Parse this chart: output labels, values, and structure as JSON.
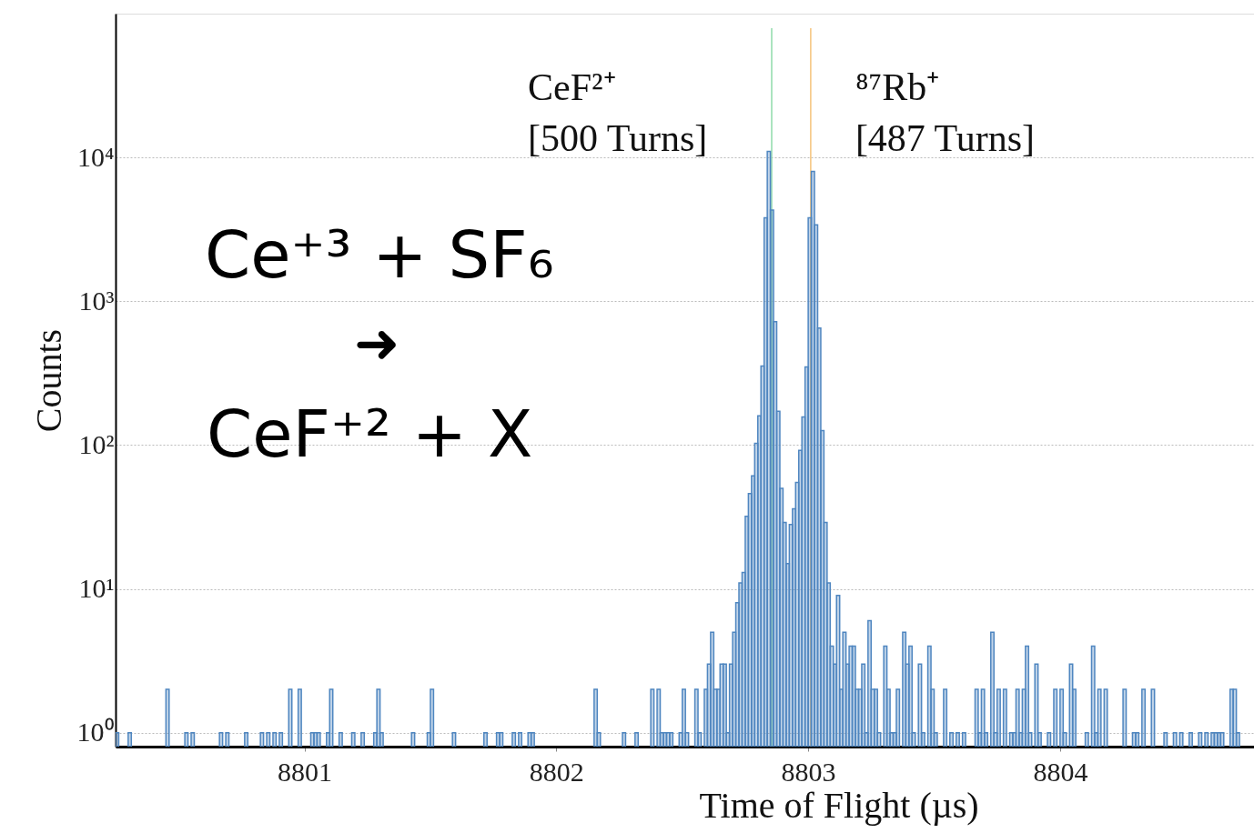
{
  "chart_data": {
    "type": "histogram",
    "xlabel": "Time of Flight (µs)",
    "ylabel": "Counts",
    "log": "y",
    "grid": "y",
    "xlim": [
      8800.25,
      8804.77
    ],
    "xticks": [
      8801,
      8802,
      8803,
      8804
    ],
    "ylim": [
      0.8,
      100000
    ],
    "yticks": [
      {
        "value": 1,
        "label": "10⁰"
      },
      {
        "value": 10,
        "label": "10¹"
      },
      {
        "value": 100,
        "label": "10²"
      },
      {
        "value": 1000,
        "label": "10³"
      },
      {
        "value": 10000,
        "label": "10⁴"
      }
    ],
    "color": "#4f86c0",
    "bins": [
      8800.25,
      8800.2625,
      8800.3,
      8800.3125,
      8800.45,
      8800.4625,
      8800.525,
      8800.5375,
      8800.55,
      8800.5625,
      8800.6625,
      8800.675,
      8800.6875,
      8800.7,
      8800.7625,
      8800.775,
      8800.825,
      8800.8375,
      8800.85,
      8800.8625,
      8800.875,
      8800.8875,
      8800.9,
      8800.9125,
      8800.9375,
      8800.95,
      8800.975,
      8800.9875,
      8801.025,
      8801.0375,
      8801.05,
      8801.0625,
      8801.0875,
      8801.1,
      8801.1125,
      8801.1375,
      8801.15,
      8801.1875,
      8801.2,
      8801.225,
      8801.2375,
      8801.275,
      8801.2875,
      8801.3,
      8801.3125,
      8801.425,
      8801.4375,
      8801.4875,
      8801.5,
      8801.5125,
      8801.5875,
      8801.6,
      8801.7125,
      8801.725,
      8801.7625,
      8801.775,
      8801.7875,
      8801.825,
      8801.8375,
      8801.85,
      8801.8625,
      8801.8875,
      8801.9,
      8801.9125,
      8802.15,
      8802.1625,
      8802.175,
      8802.2625,
      8802.275,
      8802.3125,
      8802.325,
      8802.375,
      8802.3875,
      8802.4,
      8802.4125,
      8802.425,
      8802.4375,
      8802.45,
      8802.4625,
      8802.4875,
      8802.5,
      8802.5125,
      8802.525,
      8802.55,
      8802.5625,
      8802.575,
      8802.5875,
      8802.6,
      8802.6125,
      8802.625,
      8802.6375,
      8802.65,
      8802.6625,
      8802.675,
      8802.6875,
      8802.7,
      8802.7125,
      8802.725,
      8802.7375,
      8802.75,
      8802.7625,
      8802.775,
      8802.7875,
      8802.8,
      8802.8125,
      8802.825,
      8802.8375,
      8802.85,
      8802.8625,
      8802.875,
      8802.8875,
      8802.9,
      8802.9125,
      8802.925,
      8802.9375,
      8802.95,
      8802.9625,
      8802.975,
      8802.9875,
      8803.0,
      8803.0125,
      8803.025,
      8803.0375,
      8803.05,
      8803.0625,
      8803.075,
      8803.0875,
      8803.1,
      8803.1125,
      8803.125,
      8803.1375,
      8803.15,
      8803.1625,
      8803.175,
      8803.1875,
      8803.2,
      8803.2125,
      8803.225,
      8803.2375,
      8803.25,
      8803.2625,
      8803.275,
      8803.2875,
      8803.3,
      8803.3125,
      8803.325,
      8803.3375,
      8803.35,
      8803.3625,
      8803.375,
      8803.3875,
      8803.4,
      8803.4125,
      8803.425,
      8803.4375,
      8803.45,
      8803.4625,
      8803.475,
      8803.4875,
      8803.5,
      8803.5125,
      8803.5375,
      8803.55,
      8803.5625,
      8803.575,
      8803.5875,
      8803.6,
      8803.6125,
      8803.625,
      8803.6625,
      8803.675,
      8803.6875,
      8803.7,
      8803.7125,
      8803.725,
      8803.7375,
      8803.75,
      8803.7625,
      8803.775,
      8803.7875,
      8803.8,
      8803.8125,
      8803.825,
      8803.8375,
      8803.85,
      8803.8625,
      8803.875,
      8803.8875,
      8803.9,
      8803.9125,
      8803.925,
      8803.95,
      8803.9625,
      8803.975,
      8803.9875,
      8804.0,
      8804.0125,
      8804.025,
      8804.0375,
      8804.05,
      8804.0625,
      8804.1,
      8804.1125,
      8804.125,
      8804.1375,
      8804.15,
      8804.1625,
      8804.175,
      8804.1875,
      8804.25,
      8804.2625,
      8804.2875,
      8804.3,
      8804.3125,
      8804.325,
      8804.3375,
      8804.3625,
      8804.375,
      8804.4125,
      8804.425,
      8804.45,
      8804.4625,
      8804.475,
      8804.4875,
      8804.5125,
      8804.525,
      8804.55,
      8804.5625,
      8804.575,
      8804.5875,
      8804.6,
      8804.6125,
      8804.625,
      8804.6375,
      8804.65,
      8804.675,
      8804.6875,
      8804.7,
      8804.7125
    ],
    "values": [
      1,
      null,
      1,
      null,
      2,
      null,
      1,
      null,
      1,
      null,
      1,
      null,
      1,
      null,
      1,
      null,
      1,
      null,
      1,
      null,
      1,
      null,
      1,
      null,
      2,
      null,
      2,
      null,
      1,
      1,
      1,
      null,
      1,
      2,
      null,
      1,
      null,
      1,
      null,
      1,
      null,
      1,
      2,
      1,
      null,
      1,
      null,
      1,
      2,
      null,
      1,
      null,
      1,
      null,
      1,
      1,
      null,
      1,
      null,
      1,
      null,
      1,
      1,
      null,
      2,
      1,
      null,
      1,
      null,
      1,
      null,
      2,
      null,
      2,
      1,
      1,
      1,
      1,
      null,
      1,
      2,
      1,
      null,
      2,
      1,
      null,
      2,
      3,
      5,
      2,
      2,
      3,
      3,
      1,
      3,
      5,
      8,
      11,
      13,
      32,
      46,
      61,
      103,
      160,
      355,
      3800,
      11000,
      4300,
      720,
      172,
      50,
      29,
      15,
      28,
      36,
      55,
      92,
      157,
      349,
      3800,
      8000,
      3400,
      650,
      126,
      29,
      11,
      4,
      3,
      9,
      2,
      5,
      3,
      4,
      4,
      2,
      2,
      3,
      1,
      6,
      2,
      2,
      1,
      null,
      4,
      2,
      1,
      1,
      2,
      null,
      5,
      3,
      4,
      1,
      null,
      3,
      1,
      null,
      4,
      2,
      1,
      null,
      2,
      null,
      1,
      null,
      1,
      null,
      1,
      null,
      2,
      1,
      2,
      1,
      null,
      5,
      1,
      2,
      null,
      2,
      null,
      1,
      1,
      2,
      1,
      2,
      4,
      1,
      null,
      3,
      1,
      null,
      1,
      null,
      2,
      null,
      2,
      1,
      null,
      3,
      2,
      null,
      1,
      null,
      4,
      1,
      2,
      null,
      2,
      null,
      2,
      null,
      1,
      1,
      null,
      2,
      null,
      2,
      null,
      1,
      null,
      1,
      null,
      1,
      null,
      1,
      null,
      1,
      null,
      1,
      null,
      1,
      1,
      1,
      1,
      null,
      2,
      2,
      1
    ],
    "ref_lines": [
      {
        "axis": "x",
        "value": 8802.855,
        "label": "CeF²⁺\n[500 Turns]",
        "color": "#8fdcaa"
      },
      {
        "axis": "x",
        "value": 8803.01,
        "label": "⁸⁷Rb⁺\n[487 Turns]",
        "color": "#f5c47c"
      }
    ],
    "annotations": [
      "Ce⁺³ + SF₆",
      "➜",
      "CeF⁺²  + X"
    ]
  }
}
